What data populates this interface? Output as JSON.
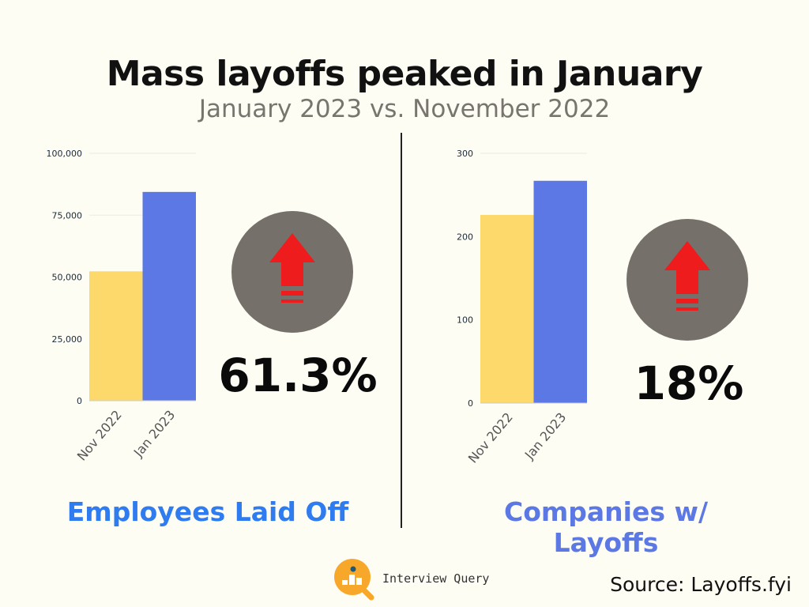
{
  "title": "Mass layoffs peaked in January",
  "subtitle": "January 2023 vs. November 2022",
  "chart_data": [
    {
      "type": "bar",
      "title": "Employees Laid Off",
      "categories": [
        "Nov 2022",
        "Jan 2023"
      ],
      "values": [
        52300,
        84400
      ],
      "colors": [
        "#fdd86a",
        "#5b78e4"
      ],
      "ylim": [
        0,
        100000
      ],
      "yticks": [
        0,
        25000,
        50000,
        75000,
        100000
      ],
      "ytick_labels": [
        "0",
        "25,000",
        "50,000",
        "75,000",
        "100,000"
      ],
      "grid": true,
      "change_label": "61.3%",
      "label_color": "#2f7bf0"
    },
    {
      "type": "bar",
      "title": "Companies w/ Layoffs",
      "categories": [
        "Nov 2022",
        "Jan 2023"
      ],
      "values": [
        226,
        267
      ],
      "colors": [
        "#fdd86a",
        "#5b78e4"
      ],
      "ylim": [
        0,
        300
      ],
      "yticks": [
        0,
        100,
        200,
        300
      ],
      "ytick_labels": [
        "0",
        "100",
        "200",
        "300"
      ],
      "grid": true,
      "change_label": "18%",
      "label_color": "#5b78e4"
    }
  ],
  "icons": {
    "indicator": "up-arrow-icon",
    "circle_color": "#757069",
    "arrow_color": "#ee1c1c"
  },
  "logo": {
    "text": "Interview Query",
    "color": "#f7a82a"
  },
  "source": "Source: Layoffs.fyi"
}
